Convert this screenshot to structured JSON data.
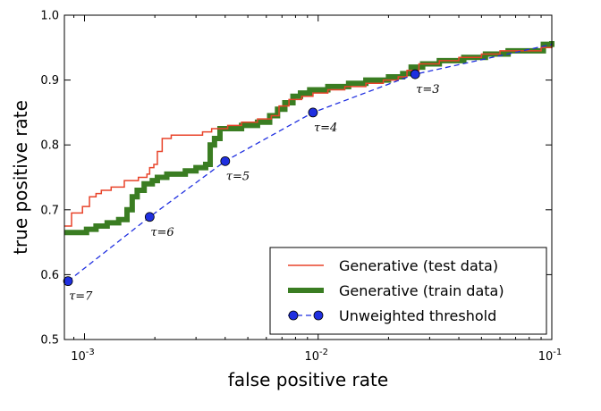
{
  "chart_data": {
    "type": "line",
    "xscale": "log",
    "xlabel": "false positive rate",
    "ylabel": "true positive rate",
    "xlim": [
      0.00082,
      0.1
    ],
    "ylim": [
      0.5,
      1.0
    ],
    "x_ticks": [
      {
        "value": 0.001,
        "base": "10",
        "exp": "-3"
      },
      {
        "value": 0.01,
        "base": "10",
        "exp": "-2"
      },
      {
        "value": 0.1,
        "base": "10",
        "exp": "-1"
      }
    ],
    "y_ticks": [
      {
        "value": 0.5,
        "label": "0.5"
      },
      {
        "value": 0.6,
        "label": "0.6"
      },
      {
        "value": 0.7,
        "label": "0.7"
      },
      {
        "value": 0.8,
        "label": "0.8"
      },
      {
        "value": 0.9,
        "label": "0.9"
      },
      {
        "value": 1.0,
        "label": "1.0"
      }
    ],
    "legend_position": "lower-right",
    "series": [
      {
        "name": "Generative (test data)",
        "color": "#e8432a",
        "style": "step",
        "points": [
          [
            0.00082,
            0.675
          ],
          [
            0.00088,
            0.695
          ],
          [
            0.00098,
            0.705
          ],
          [
            0.00105,
            0.72
          ],
          [
            0.00112,
            0.725
          ],
          [
            0.00118,
            0.73
          ],
          [
            0.0013,
            0.735
          ],
          [
            0.00148,
            0.745
          ],
          [
            0.0017,
            0.75
          ],
          [
            0.00185,
            0.755
          ],
          [
            0.0019,
            0.765
          ],
          [
            0.00198,
            0.77
          ],
          [
            0.00205,
            0.79
          ],
          [
            0.00215,
            0.81
          ],
          [
            0.00235,
            0.815
          ],
          [
            0.0026,
            0.815
          ],
          [
            0.0029,
            0.815
          ],
          [
            0.0032,
            0.82
          ],
          [
            0.0035,
            0.825
          ],
          [
            0.0041,
            0.83
          ],
          [
            0.0047,
            0.835
          ],
          [
            0.0055,
            0.84
          ],
          [
            0.0063,
            0.845
          ],
          [
            0.0068,
            0.86
          ],
          [
            0.0075,
            0.87
          ],
          [
            0.0085,
            0.875
          ],
          [
            0.0095,
            0.88
          ],
          [
            0.011,
            0.885
          ],
          [
            0.013,
            0.89
          ],
          [
            0.016,
            0.895
          ],
          [
            0.019,
            0.9
          ],
          [
            0.022,
            0.905
          ],
          [
            0.024,
            0.915
          ],
          [
            0.027,
            0.925
          ],
          [
            0.033,
            0.93
          ],
          [
            0.04,
            0.935
          ],
          [
            0.05,
            0.94
          ],
          [
            0.06,
            0.945
          ],
          [
            0.075,
            0.945
          ],
          [
            0.09,
            0.95
          ],
          [
            0.1,
            0.955
          ]
        ]
      },
      {
        "name": "Generative (train data)",
        "color": "#3a7d22",
        "style": "step",
        "points": [
          [
            0.00082,
            0.665
          ],
          [
            0.00098,
            0.665
          ],
          [
            0.00102,
            0.67
          ],
          [
            0.00112,
            0.675
          ],
          [
            0.00125,
            0.68
          ],
          [
            0.0014,
            0.685
          ],
          [
            0.00152,
            0.7
          ],
          [
            0.0016,
            0.72
          ],
          [
            0.00168,
            0.73
          ],
          [
            0.0018,
            0.74
          ],
          [
            0.00195,
            0.745
          ],
          [
            0.00205,
            0.75
          ],
          [
            0.00225,
            0.755
          ],
          [
            0.00245,
            0.755
          ],
          [
            0.0027,
            0.76
          ],
          [
            0.003,
            0.765
          ],
          [
            0.0033,
            0.77
          ],
          [
            0.00345,
            0.8
          ],
          [
            0.0036,
            0.81
          ],
          [
            0.0038,
            0.825
          ],
          [
            0.0047,
            0.83
          ],
          [
            0.0055,
            0.835
          ],
          [
            0.0062,
            0.845
          ],
          [
            0.0067,
            0.855
          ],
          [
            0.0072,
            0.865
          ],
          [
            0.0078,
            0.875
          ],
          [
            0.0084,
            0.88
          ],
          [
            0.0092,
            0.885
          ],
          [
            0.011,
            0.89
          ],
          [
            0.0135,
            0.895
          ],
          [
            0.016,
            0.9
          ],
          [
            0.02,
            0.905
          ],
          [
            0.023,
            0.91
          ],
          [
            0.025,
            0.92
          ],
          [
            0.028,
            0.925
          ],
          [
            0.033,
            0.93
          ],
          [
            0.042,
            0.935
          ],
          [
            0.052,
            0.94
          ],
          [
            0.065,
            0.945
          ],
          [
            0.085,
            0.945
          ],
          [
            0.092,
            0.955
          ],
          [
            0.1,
            0.96
          ]
        ]
      },
      {
        "name": "Unweighted threshold",
        "color": "#1f2fe0",
        "style": "dashed-markers",
        "points": [
          [
            0.00085,
            0.59
          ],
          [
            0.0019,
            0.689
          ],
          [
            0.004,
            0.775
          ],
          [
            0.0095,
            0.85
          ],
          [
            0.026,
            0.909
          ],
          [
            0.1,
            0.955
          ]
        ],
        "markers": [
          {
            "x": 0.00085,
            "y": 0.59,
            "label": "τ=7"
          },
          {
            "x": 0.0019,
            "y": 0.689,
            "label": "τ=6"
          },
          {
            "x": 0.004,
            "y": 0.775,
            "label": "τ=5"
          },
          {
            "x": 0.0095,
            "y": 0.85,
            "label": "τ=4"
          },
          {
            "x": 0.026,
            "y": 0.909,
            "label": "τ=3"
          }
        ]
      }
    ]
  }
}
